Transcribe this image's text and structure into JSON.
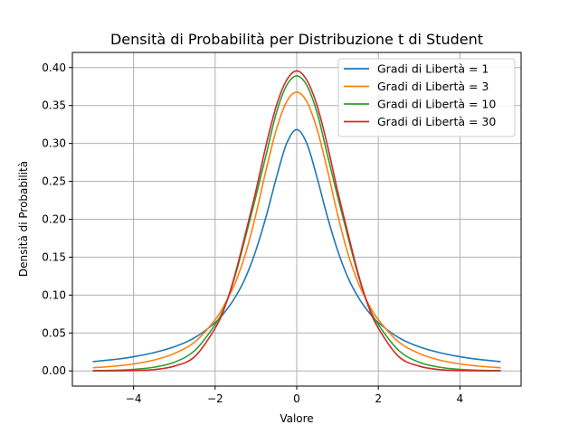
{
  "chart_data": {
    "type": "line",
    "title": "Densità di Probabilità per Distribuzione t di Student",
    "xlabel": "Valore",
    "ylabel": "Densità di Probabilità",
    "xlim": [
      -5.5,
      5.5
    ],
    "ylim": [
      -0.02,
      0.42
    ],
    "xticks": [
      -4,
      -2,
      0,
      2,
      4
    ],
    "xtick_labels": [
      "−4",
      "−2",
      "0",
      "2",
      "4"
    ],
    "yticks": [
      0.0,
      0.05,
      0.1,
      0.15,
      0.2,
      0.25,
      0.3,
      0.35,
      0.4
    ],
    "ytick_labels": [
      "0.00",
      "0.05",
      "0.10",
      "0.15",
      "0.20",
      "0.25",
      "0.30",
      "0.35",
      "0.40"
    ],
    "grid": true,
    "legend_position": "top-right",
    "x": [
      -5,
      -4.5,
      -4,
      -3.5,
      -3,
      -2.5,
      -2,
      -1.75,
      -1.5,
      -1.25,
      -1,
      -0.75,
      -0.5,
      -0.25,
      0,
      0.25,
      0.5,
      0.75,
      1,
      1.25,
      1.5,
      1.75,
      2,
      2.5,
      3,
      3.5,
      4,
      4.5,
      5
    ],
    "series": [
      {
        "name": "Gradi di Libertà = 1",
        "color": "#1f77b4",
        "values": [
          0.0122,
          0.0149,
          0.0187,
          0.0241,
          0.0318,
          0.0439,
          0.0637,
          0.0786,
          0.0979,
          0.1238,
          0.1592,
          0.2037,
          0.2546,
          0.2996,
          0.3183,
          0.2996,
          0.2546,
          0.2037,
          0.1592,
          0.1238,
          0.0979,
          0.0786,
          0.0637,
          0.0439,
          0.0318,
          0.0241,
          0.0187,
          0.0149,
          0.0122
        ]
      },
      {
        "name": "Gradi di Libertà = 3",
        "color": "#ff7f0e",
        "values": [
          0.0042,
          0.0061,
          0.0092,
          0.0143,
          0.023,
          0.0382,
          0.0675,
          0.0894,
          0.1172,
          0.1556,
          0.2067,
          0.2653,
          0.3183,
          0.3548,
          0.3676,
          0.3548,
          0.3183,
          0.2653,
          0.2067,
          0.1556,
          0.1172,
          0.0894,
          0.0675,
          0.0382,
          0.023,
          0.0143,
          0.0092,
          0.0061,
          0.0042
        ]
      },
      {
        "name": "Gradi di Libertà = 10",
        "color": "#2ca02c",
        "values": [
          0.0004,
          0.0008,
          0.002,
          0.0049,
          0.0114,
          0.0269,
          0.0611,
          0.087,
          0.1274,
          0.1779,
          0.2304,
          0.2853,
          0.3402,
          0.3763,
          0.3891,
          0.3763,
          0.3402,
          0.2853,
          0.2304,
          0.1779,
          0.1274,
          0.087,
          0.0611,
          0.0269,
          0.0114,
          0.0049,
          0.002,
          0.0008,
          0.0004
        ]
      },
      {
        "name": "Gradi di Libertà = 30",
        "color": "#d62728",
        "values": [
          0.0,
          0.0001,
          0.0005,
          0.0017,
          0.0063,
          0.0189,
          0.0563,
          0.0861,
          0.1295,
          0.1826,
          0.2378,
          0.2979,
          0.3497,
          0.3832,
          0.3956,
          0.3832,
          0.3497,
          0.2979,
          0.2378,
          0.1826,
          0.1295,
          0.0861,
          0.0563,
          0.0189,
          0.0063,
          0.0017,
          0.0005,
          0.0001,
          0.0
        ]
      }
    ]
  }
}
